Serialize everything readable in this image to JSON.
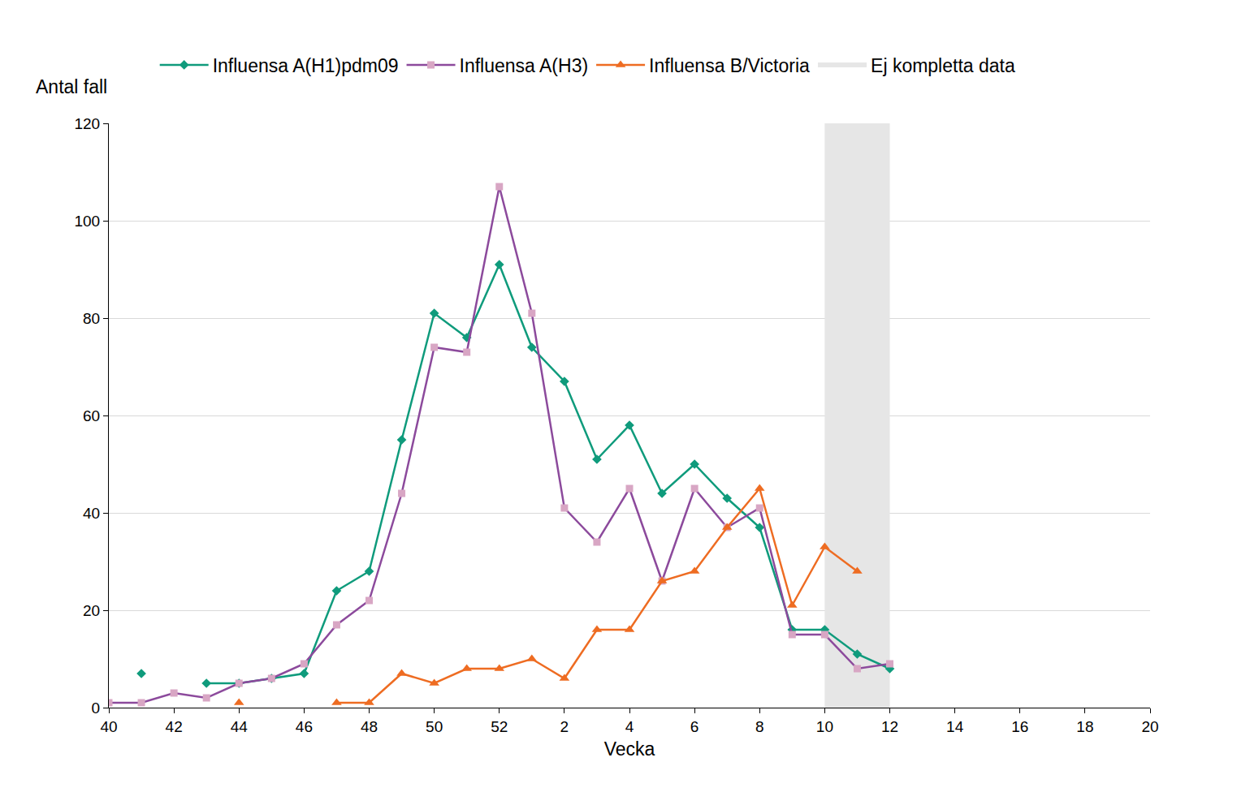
{
  "chart_data": {
    "type": "line",
    "x_label": "Vecka",
    "y_label": "Antal fall",
    "categories": [
      "40",
      null,
      "42",
      null,
      "44",
      null,
      "46",
      null,
      "48",
      null,
      "50",
      null,
      "52",
      null,
      "2",
      null,
      "4",
      null,
      "6",
      null,
      "8",
      null,
      "10",
      null,
      "12",
      null,
      "14",
      null,
      "16",
      null,
      "18",
      null,
      "20"
    ],
    "series": [
      {
        "name": "Influensa A(H1)pdm09",
        "color": "#0f9b7c",
        "marker": "diamond",
        "values": [
          null,
          7,
          null,
          5,
          5,
          6,
          7,
          24,
          28,
          55,
          81,
          76,
          91,
          74,
          67,
          51,
          58,
          44,
          50,
          43,
          37,
          16,
          16,
          11,
          8,
          null,
          null,
          null,
          null,
          null,
          null,
          null,
          null
        ]
      },
      {
        "name": "Influensa A(H3)",
        "color": "#8c4a9c",
        "marker": "square",
        "values": [
          1,
          1,
          3,
          2,
          5,
          6,
          9,
          17,
          22,
          44,
          74,
          73,
          107,
          81,
          41,
          34,
          45,
          26,
          45,
          37,
          41,
          15,
          15,
          8,
          9,
          null,
          null,
          null,
          null,
          null,
          null,
          null,
          null
        ]
      },
      {
        "name": "Influensa B/Victoria",
        "color": "#ee6c22",
        "marker": "triangle-up",
        "values": [
          null,
          null,
          null,
          null,
          1,
          null,
          null,
          1,
          1,
          7,
          5,
          8,
          8,
          10,
          6,
          16,
          16,
          26,
          28,
          37,
          45,
          21,
          33,
          28,
          null,
          null,
          null,
          null,
          null,
          null,
          null,
          null,
          null
        ]
      }
    ],
    "shaded": {
      "label": "Ej kompletta data",
      "start": "10",
      "end": "12",
      "color": "#e6e6e6"
    },
    "ylim": [
      0,
      120
    ],
    "yticks": [
      0,
      20,
      40,
      60,
      80,
      100,
      120
    ],
    "grid": true,
    "legend": "top"
  }
}
